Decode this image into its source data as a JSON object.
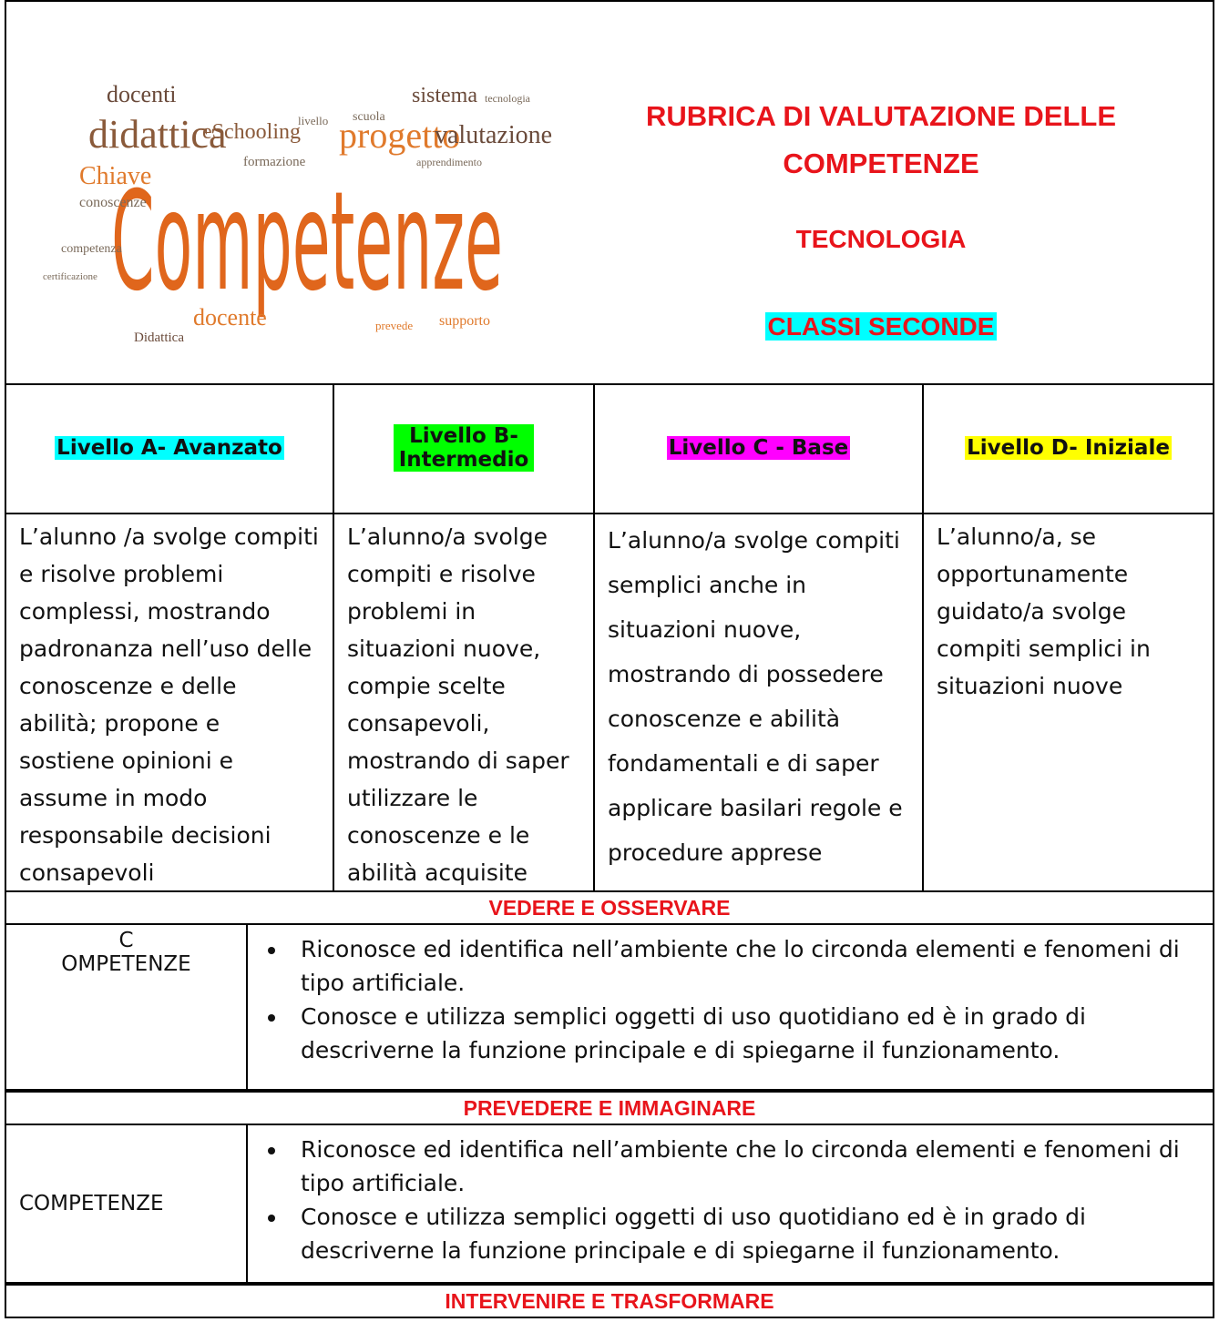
{
  "header": {
    "word_cloud": [
      "Competenze",
      "didattica",
      "docenti",
      "eSchooling",
      "progetto",
      "valutazione",
      "sistema",
      "Chiave",
      "conoscenze",
      "competenza",
      "formazione",
      "docente",
      "Didattica",
      "supporto",
      "prevede",
      "scuola",
      "tecnologia",
      "apprendimento",
      "certificazione",
      "livello"
    ],
    "title": "RUBRICA DI VALUTAZIONE DELLE COMPETENZE",
    "subject": "TECNOLOGIA",
    "classes": "CLASSI SECONDE"
  },
  "levels": [
    {
      "label": "Livello A- Avanzato",
      "description": "L’alunno /a svolge compiti e risolve problemi complessi, mostrando padronanza nell’uso delle conoscenze e delle abilità; propone e sostiene opinioni e assume in modo responsabile decisioni consapevoli"
    },
    {
      "label": "Livello B- Intermedio",
      "description": "L’alunno/a svolge compiti e risolve problemi in situazioni nuove, compie scelte consapevoli, mostrando di saper utilizzare le conoscenze e le abilità acquisite"
    },
    {
      "label": "Livello  C  - Base",
      "description": "L’alunno/a svolge compiti semplici anche in situazioni nuove, mostrando di possedere conoscenze e abilità fondamentali e di saper applicare basilari regole e procedure apprese"
    },
    {
      "label": "Livello D- Iniziale",
      "description": "L’alunno/a, se opportunamente guidato/a svolge compiti semplici in situazioni nuove"
    }
  ],
  "sections": [
    {
      "title": "VEDERE E OSSERVARE",
      "label": "C\nOMPETENZE",
      "items": [
        "Riconosce ed identifica nell’ambiente che lo circonda elementi e fenomeni di tipo artificiale.",
        "Conosce e utilizza semplici oggetti di uso quotidiano ed è in grado di descriverne la funzione principale e di spiegarne il funzionamento."
      ]
    },
    {
      "title": "PREVEDERE E IMMAGINARE",
      "label": "COMPETENZE",
      "items": [
        "Riconosce ed identifica nell’ambiente che lo circonda elementi e fenomeni di tipo artificiale.",
        "Conosce e utilizza semplici oggetti di uso quotidiano ed è in grado di descriverne la funzione principale e di spiegarne il funzionamento."
      ]
    },
    {
      "title": "INTERVENIRE E TRASFORMARE"
    }
  ]
}
